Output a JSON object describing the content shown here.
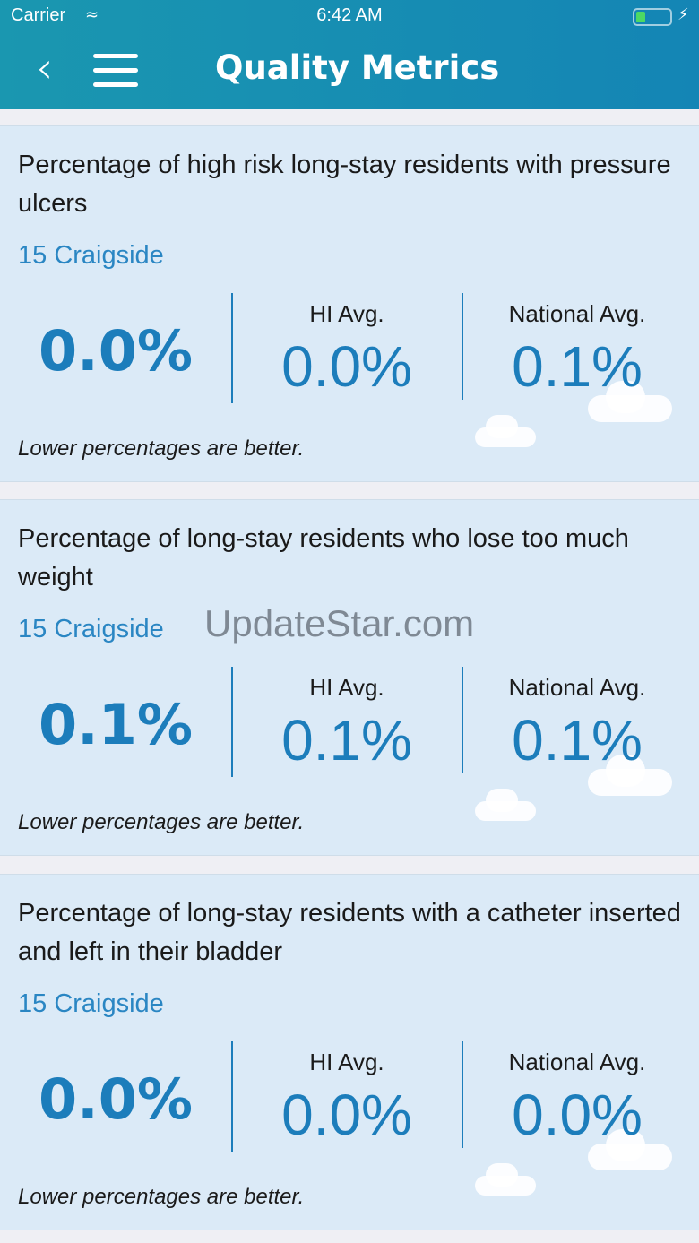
{
  "status_bar": {
    "carrier": "Carrier",
    "time": "6:42 AM"
  },
  "header": {
    "title": "Quality Metrics"
  },
  "watermark": "UpdateStar.com",
  "metrics": [
    {
      "title": "Percentage of high risk long-stay residents with pressure ulcers",
      "location": "15 Craigside",
      "facility_value": "0.0%",
      "hi_label": "HI Avg.",
      "hi_value": "0.0%",
      "national_label": "National Avg.",
      "national_value": "0.1%",
      "note": "Lower percentages are better."
    },
    {
      "title": "Percentage of long-stay residents who lose too much weight",
      "location": "15 Craigside",
      "facility_value": "0.1%",
      "hi_label": "HI Avg.",
      "hi_value": "0.1%",
      "national_label": "National Avg.",
      "national_value": "0.1%",
      "note": "Lower percentages are better."
    },
    {
      "title": "Percentage of long-stay residents with a catheter inserted and left in their bladder",
      "location": "15 Craigside",
      "facility_value": "0.0%",
      "hi_label": "HI Avg.",
      "hi_value": "0.0%",
      "national_label": "National Avg.",
      "national_value": "0.0%",
      "note": "Lower percentages are better."
    }
  ]
}
